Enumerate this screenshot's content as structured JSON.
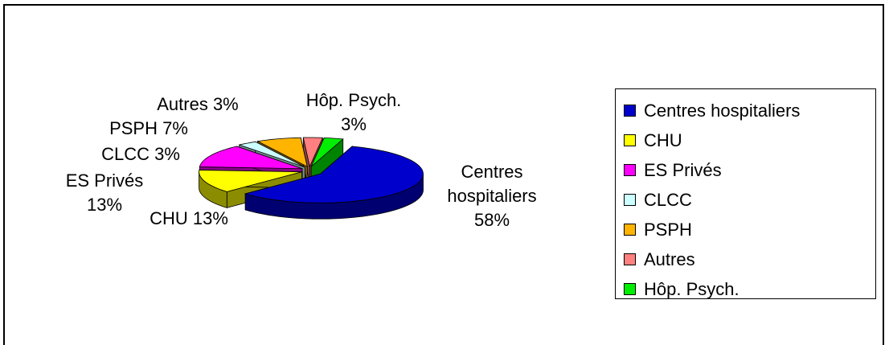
{
  "chart_data": {
    "type": "pie3d",
    "categories": [
      "Centres hospitaliers",
      "CHU",
      "ES Privés",
      "CLCC",
      "PSPH",
      "Autres",
      "Hôp. Psych."
    ],
    "values": [
      58,
      13,
      13,
      3,
      7,
      3,
      3
    ],
    "value_labels": [
      "Centres hospitaliers 58%",
      "CHU 13%",
      "ES Privés 13%",
      "CLCC 3%",
      "PSPH 7%",
      "Autres 3%",
      "Hôp. Psych. 3%"
    ],
    "colors": [
      "#0000cc",
      "#ffff00",
      "#ff00ff",
      "#ccffff",
      "#ffb400",
      "#ff8080",
      "#00ee00"
    ],
    "legend": "right"
  }
}
